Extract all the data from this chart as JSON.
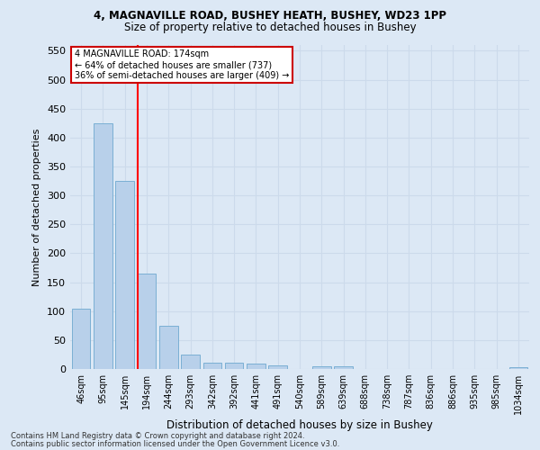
{
  "title1": "4, MAGNAVILLE ROAD, BUSHEY HEATH, BUSHEY, WD23 1PP",
  "title2": "Size of property relative to detached houses in Bushey",
  "xlabel": "Distribution of detached houses by size in Bushey",
  "ylabel": "Number of detached properties",
  "categories": [
    "46sqm",
    "95sqm",
    "145sqm",
    "194sqm",
    "244sqm",
    "293sqm",
    "342sqm",
    "392sqm",
    "441sqm",
    "491sqm",
    "540sqm",
    "589sqm",
    "639sqm",
    "688sqm",
    "738sqm",
    "787sqm",
    "836sqm",
    "886sqm",
    "935sqm",
    "985sqm",
    "1034sqm"
  ],
  "values": [
    104,
    425,
    325,
    165,
    75,
    25,
    11,
    11,
    10,
    7,
    0,
    5,
    5,
    0,
    0,
    0,
    0,
    0,
    0,
    0,
    3
  ],
  "bar_color": "#b8d0ea",
  "bar_edge_color": "#7aafd4",
  "grid_color": "#ccdaeb",
  "background_color": "#dce8f5",
  "red_line_x": 2.57,
  "annotation_line1": "4 MAGNAVILLE ROAD: 174sqm",
  "annotation_line2": "← 64% of detached houses are smaller (737)",
  "annotation_line3": "36% of semi-detached houses are larger (409) →",
  "annotation_box_color": "#ffffff",
  "annotation_border_color": "#cc0000",
  "footer1": "Contains HM Land Registry data © Crown copyright and database right 2024.",
  "footer2": "Contains public sector information licensed under the Open Government Licence v3.0.",
  "ylim": [
    0,
    560
  ],
  "yticks": [
    0,
    50,
    100,
    150,
    200,
    250,
    300,
    350,
    400,
    450,
    500,
    550
  ]
}
